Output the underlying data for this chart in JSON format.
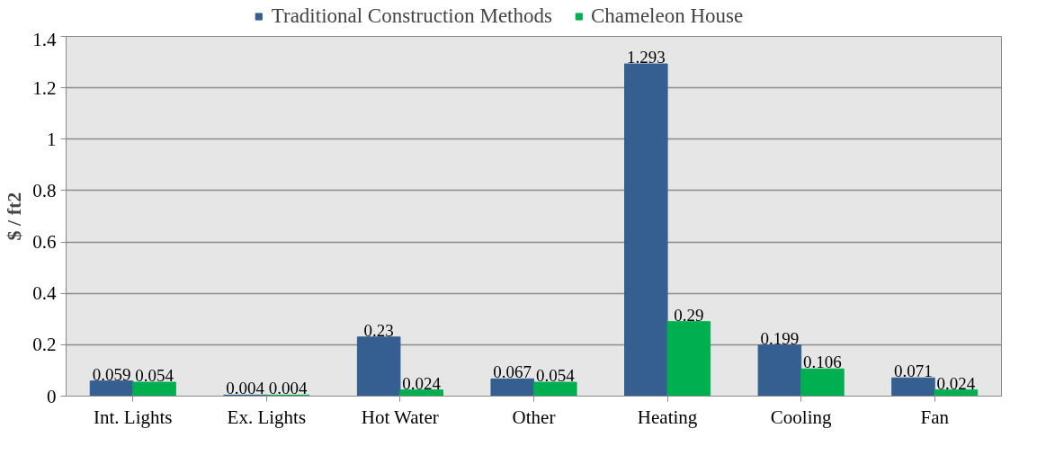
{
  "chart_data": {
    "type": "bar",
    "ylabel": "$ / ft2",
    "categories": [
      "Int. Lights",
      "Ex. Lights",
      "Hot Water",
      "Other",
      "Heating",
      "Cooling",
      "Fan"
    ],
    "series": [
      {
        "name": "Traditional Construction Methods",
        "color": "#355f91",
        "values": [
          0.059,
          0.004,
          0.23,
          0.067,
          1.293,
          0.199,
          0.071
        ]
      },
      {
        "name": "Chameleon House",
        "color": "#00b050",
        "values": [
          0.054,
          0.004,
          0.024,
          0.054,
          0.29,
          0.106,
          0.024
        ]
      }
    ],
    "ylim": [
      0,
      1.4
    ],
    "yticks": [
      0,
      0.2,
      0.4,
      0.6,
      0.8,
      1,
      1.2,
      1.4
    ],
    "grid": "y",
    "legend": "top",
    "data_labels": true
  }
}
